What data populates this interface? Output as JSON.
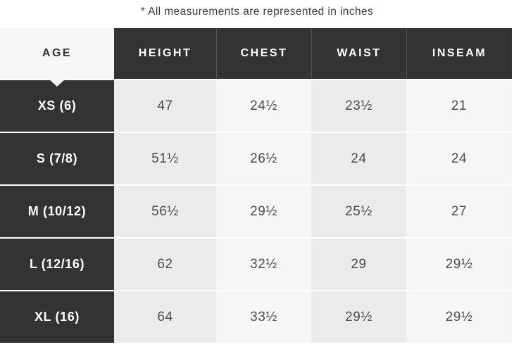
{
  "note": "* All measurements are represented in inches",
  "chart_data": {
    "type": "table",
    "title": "* All measurements are represented in inches",
    "unit": "inches",
    "columns": [
      "AGE",
      "HEIGHT",
      "CHEST",
      "WAIST",
      "INSEAM"
    ],
    "rows": [
      {
        "label": "XS (6)",
        "values": [
          "47",
          "24½",
          "23½",
          "21"
        ]
      },
      {
        "label": "S (7/8)",
        "values": [
          "51½",
          "26½",
          "24",
          "24"
        ]
      },
      {
        "label": "M (10/12)",
        "values": [
          "56½",
          "29½",
          "25½",
          "27"
        ]
      },
      {
        "label": "L (12/16)",
        "values": [
          "62",
          "32½",
          "29",
          "29½"
        ]
      },
      {
        "label": "XL (16)",
        "values": [
          "64",
          "33½",
          "29½",
          "29½"
        ]
      }
    ]
  },
  "colors": {
    "header_bg": "#333333",
    "header_text": "#ffffff",
    "age_header_bg": "#f7f7f7",
    "age_header_text": "#333333",
    "column_shade_dark": "#ebebeb",
    "column_shade_light": "#f6f6f6",
    "cell_text": "#4c4c4c"
  }
}
